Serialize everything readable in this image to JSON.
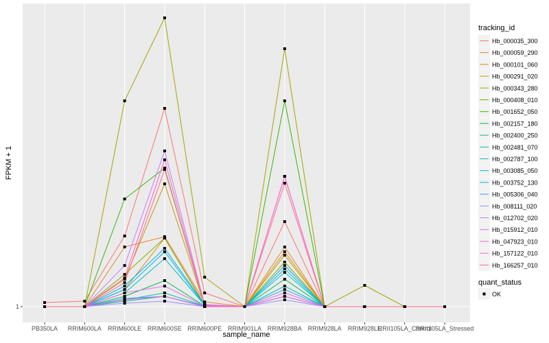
{
  "chart_data": {
    "type": "line",
    "xlabel": "sample_name",
    "ylabel": "FPKM + 1",
    "y_ticks": [
      "1"
    ],
    "ylim": [
      -1.3,
      45.2
    ],
    "grid": true,
    "legend_placement": "right",
    "categories": [
      "PB350LA",
      "RRIM600LA",
      "RRIM600LE",
      "RRIM600SE",
      "RRIM600PE",
      "RRIM901LA",
      "RRIM928BA",
      "RRIM928LA",
      "RRIM928LE",
      "RRII105LA_Control",
      "RRII105LA_Stressed"
    ],
    "legend_title": "tracking_id",
    "series": [
      {
        "name": "Hb_000035_300",
        "color": "#F8766D",
        "values": [
          1.6,
          1.8,
          11.3,
          29.9,
          3,
          1,
          13.4,
          1,
          1,
          1,
          1
        ]
      },
      {
        "name": "Hb_000059_290",
        "color": "#EA8331",
        "values": [
          1,
          1,
          9.7,
          11.2,
          1.7,
          1,
          9.7,
          1,
          1,
          1,
          1
        ]
      },
      {
        "name": "Hb_000101_060",
        "color": "#D89000",
        "values": [
          1,
          1,
          3.5,
          11,
          1.3,
          1,
          9,
          1,
          1,
          1,
          1
        ]
      },
      {
        "name": "Hb_000291_020",
        "color": "#C09B00",
        "values": [
          1,
          1,
          5,
          18.9,
          1.2,
          1,
          8.5,
          1,
          1,
          1,
          1
        ]
      },
      {
        "name": "Hb_000343_280",
        "color": "#A3A500",
        "values": [
          1,
          1,
          31,
          43.1,
          5.3,
          1,
          38.6,
          1,
          4.1,
          1,
          1
        ]
      },
      {
        "name": "Hb_000408_010",
        "color": "#7CAE00",
        "values": [
          1,
          1,
          5.7,
          11,
          1.2,
          1,
          7.5,
          1,
          1,
          1,
          1
        ]
      },
      {
        "name": "Hb_001652_050",
        "color": "#39B600",
        "values": [
          1,
          1,
          16.7,
          21.2,
          1.2,
          1,
          31,
          1,
          1,
          1,
          1
        ]
      },
      {
        "name": "Hb_002157_180",
        "color": "#00BB4E",
        "values": [
          1,
          1,
          2.5,
          4.8,
          1.1,
          1,
          5,
          1,
          1,
          1,
          1
        ]
      },
      {
        "name": "Hb_002400_250",
        "color": "#00BF7D",
        "values": [
          1,
          1,
          1.8,
          2.5,
          1,
          1,
          2.5,
          1,
          1,
          1,
          1
        ]
      },
      {
        "name": "Hb_002481_070",
        "color": "#00C1A3",
        "values": [
          1,
          1,
          2,
          3,
          1.1,
          1,
          4,
          1,
          1,
          1,
          1
        ]
      },
      {
        "name": "Hb_002787_100",
        "color": "#00BFC4",
        "values": [
          1,
          1,
          3,
          8,
          1.2,
          1,
          6,
          1,
          1,
          1,
          1
        ]
      },
      {
        "name": "Hb_003085_050",
        "color": "#00BAE0",
        "values": [
          1,
          1,
          3.5,
          9,
          1.2,
          1,
          6.5,
          1,
          1,
          1,
          1
        ]
      },
      {
        "name": "Hb_003752_130",
        "color": "#00B0F6",
        "values": [
          1,
          1,
          4,
          9.5,
          1.3,
          1,
          7,
          1,
          1,
          1,
          1
        ]
      },
      {
        "name": "Hb_005306_040",
        "color": "#35A2FF",
        "values": [
          1,
          1,
          2.2,
          2.5,
          1.1,
          1,
          3.5,
          1,
          1,
          1,
          1
        ]
      },
      {
        "name": "Hb_008111_020",
        "color": "#9590FF",
        "values": [
          1,
          1,
          1.5,
          1.8,
          1,
          1,
          2,
          1,
          1,
          1,
          1
        ]
      },
      {
        "name": "Hb_012702_020",
        "color": "#C77CFF",
        "values": [
          1,
          1,
          7,
          23.7,
          1.3,
          1,
          20,
          1,
          1,
          1,
          1
        ]
      },
      {
        "name": "Hb_015912_010",
        "color": "#E76BF3",
        "values": [
          1,
          1,
          3,
          4,
          1.1,
          1,
          3,
          1,
          1,
          1,
          1
        ]
      },
      {
        "name": "Hb_047923_010",
        "color": "#FA62DB",
        "values": [
          1,
          1,
          2,
          2.5,
          1,
          1,
          2.5,
          1,
          1,
          1,
          1
        ]
      },
      {
        "name": "Hb_157122_010",
        "color": "#FF62BC",
        "values": [
          1,
          1,
          5.2,
          22.4,
          1.2,
          1,
          20,
          1,
          1,
          1,
          1
        ]
      },
      {
        "name": "Hb_166257_010",
        "color": "#FF6C91",
        "values": [
          1,
          1,
          4.5,
          21,
          1.2,
          1,
          19,
          1,
          1,
          1,
          1
        ]
      }
    ],
    "shape_legend_title": "quant_status",
    "shape_legend": [
      "OK"
    ]
  }
}
